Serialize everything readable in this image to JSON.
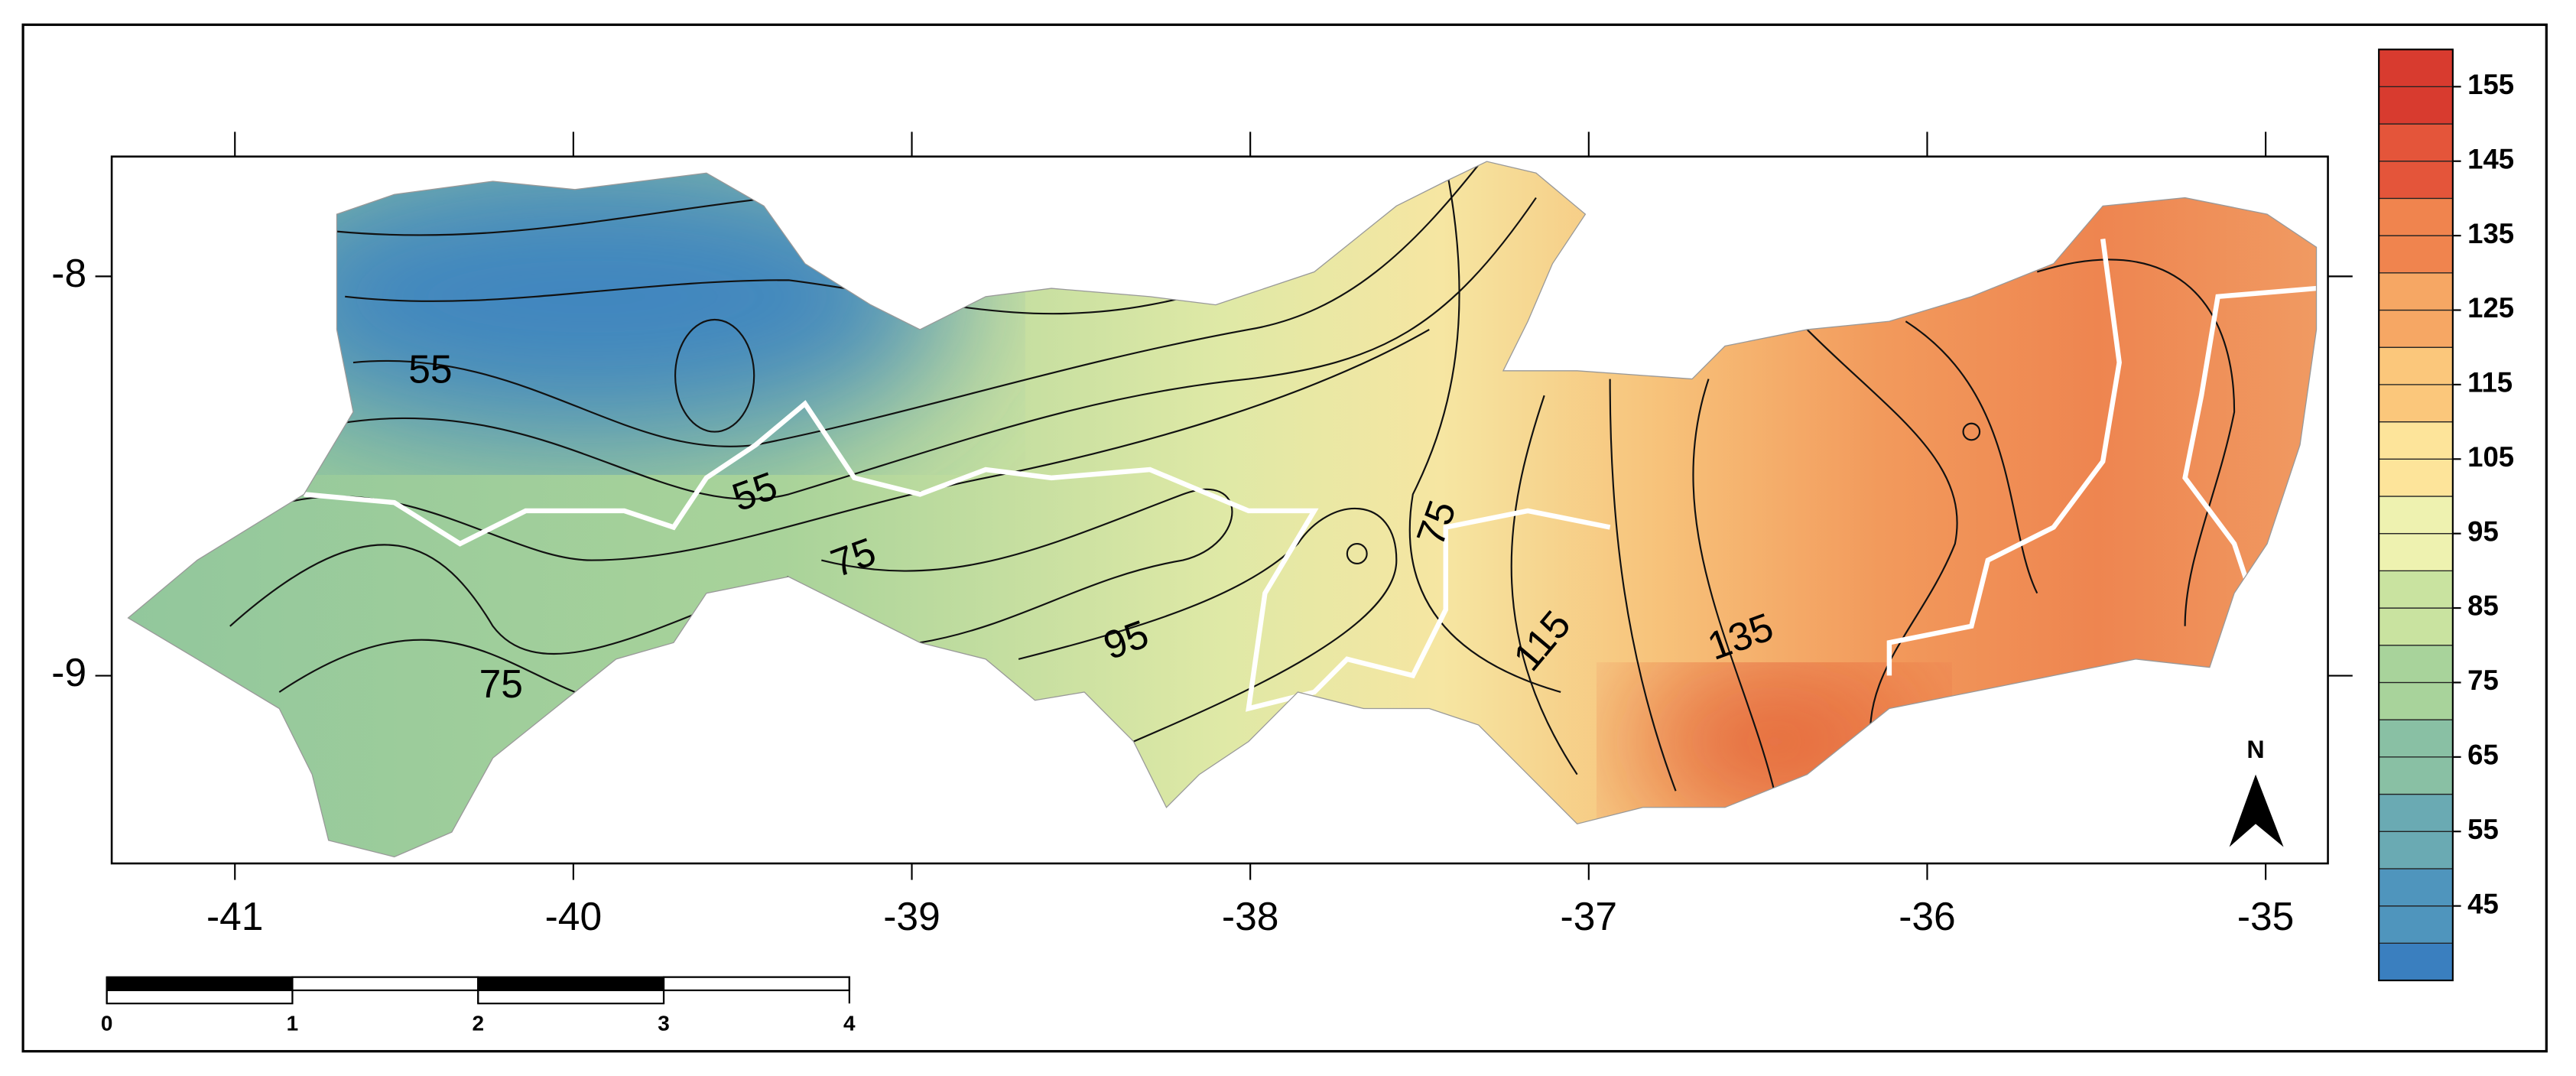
{
  "map": {
    "x_axis": {
      "ticks": [
        -41,
        -40,
        -39,
        -38,
        -37,
        -36,
        -35
      ],
      "range": [
        -41.364,
        -34.816
      ]
    },
    "y_axis": {
      "ticks": [
        -8,
        -9
      ],
      "range": [
        -7.7,
        -9.47
      ]
    },
    "contour_labels": [
      55,
      55,
      75,
      75,
      75,
      95,
      115,
      135
    ],
    "legend": {
      "labels": [
        155,
        145,
        135,
        125,
        115,
        105,
        95,
        85,
        75,
        65,
        55,
        45
      ],
      "range": [
        35,
        160
      ]
    },
    "scale_bar": {
      "labels": [
        0,
        1,
        2,
        3,
        4
      ]
    },
    "north": "N"
  }
}
